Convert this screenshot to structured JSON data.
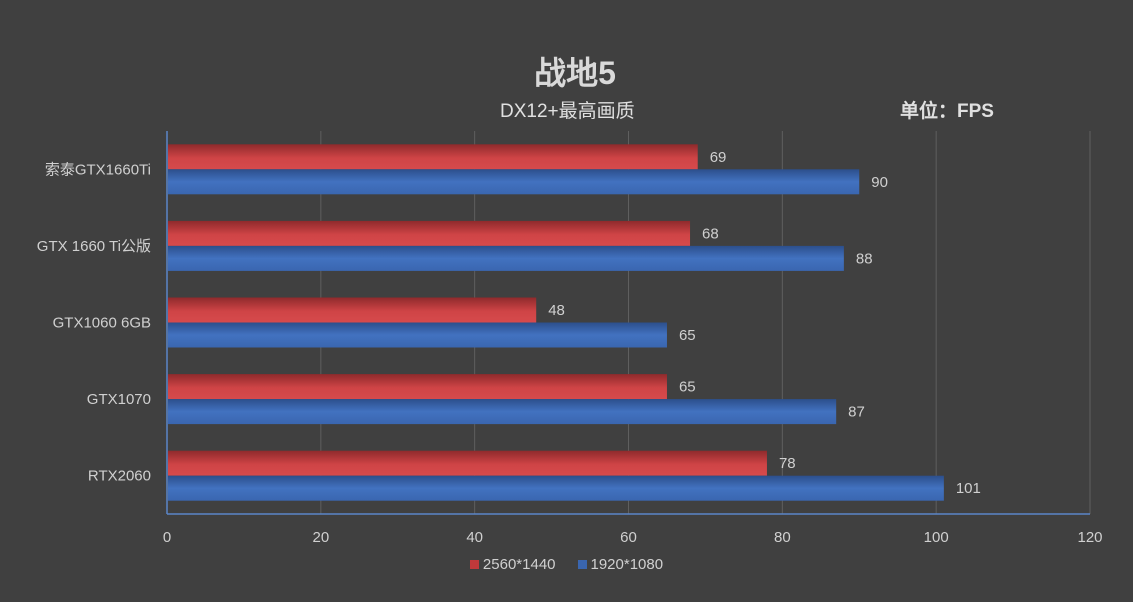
{
  "chart_data": {
    "type": "bar",
    "orientation": "horizontal",
    "title": "战地5",
    "subtitle": "DX12+最高画质",
    "unit_label": "单位：FPS",
    "categories": [
      "索泰GTX1660Ti",
      "GTX 1660 Ti公版",
      "GTX1060 6GB",
      "GTX1070",
      "RTX2060"
    ],
    "series": [
      {
        "name": "2560*1440",
        "color": "#c0393b",
        "values": [
          69,
          68,
          48,
          65,
          78
        ]
      },
      {
        "name": "1920*1080",
        "color": "#3a66b0",
        "values": [
          90,
          88,
          65,
          87,
          101
        ]
      }
    ],
    "xlim": [
      0,
      120
    ],
    "xticks": [
      "0",
      "20",
      "40",
      "60",
      "80",
      "100",
      "120"
    ],
    "grid": true,
    "legend_position": "bottom",
    "background": "#404040"
  }
}
